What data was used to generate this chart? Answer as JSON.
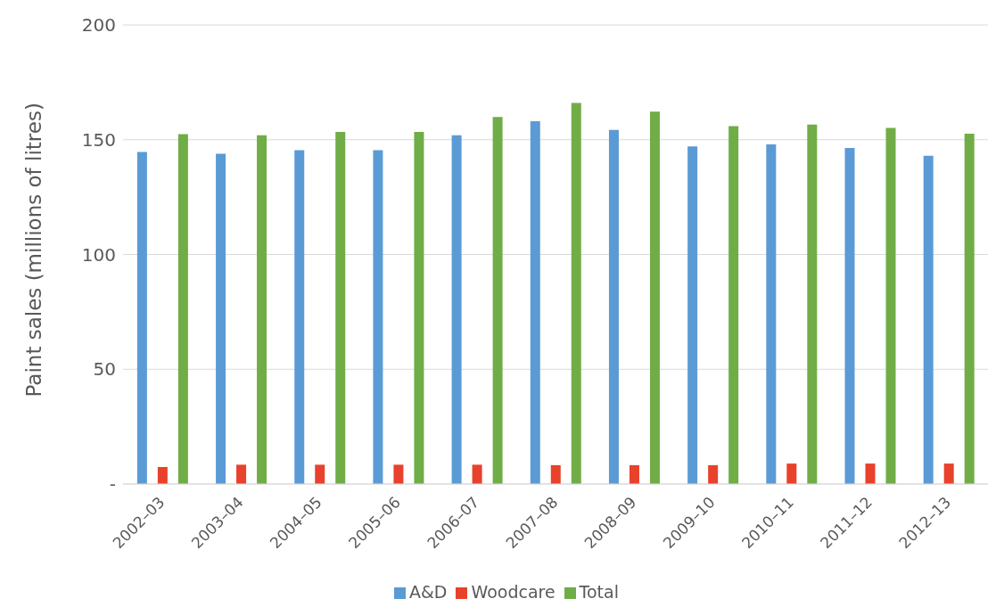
{
  "chart_data": {
    "type": "bar",
    "ylabel": "Paint sales (millions of litres)",
    "categories": [
      "2002–03",
      "2003–04",
      "2004–05",
      "2005–06",
      "2006–07",
      "2007–08",
      "2008–09",
      "2009–10",
      "2010–11",
      "2011–12",
      "2012–13"
    ],
    "series": [
      {
        "name": "A&D",
        "color": "#5b9bd5",
        "values": [
          144.7,
          143.9,
          145.4,
          145.4,
          151.9,
          158.1,
          154.3,
          147.1,
          148.0,
          146.4,
          143.0
        ]
      },
      {
        "name": "Woodcare",
        "color": "#e8412c",
        "values": [
          7.4,
          8.4,
          8.4,
          8.4,
          8.4,
          8.2,
          8.2,
          8.2,
          8.9,
          8.9,
          8.9
        ]
      },
      {
        "name": "Total",
        "color": "#70ad47",
        "values": [
          152.4,
          151.9,
          153.4,
          153.4,
          159.9,
          166.0,
          162.2,
          155.9,
          156.6,
          155.1,
          152.6
        ]
      }
    ],
    "ylim": [
      0,
      200
    ],
    "yticks": [
      {
        "value": 0,
        "label": "-"
      },
      50,
      100,
      150,
      200
    ],
    "grid": "y",
    "legend": "bottom"
  }
}
